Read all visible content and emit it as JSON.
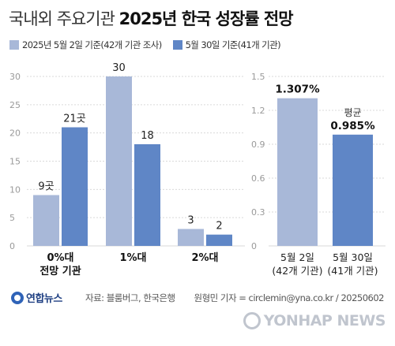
{
  "header": {
    "title_light": "국내외 주요기관",
    "title_bold": "2025년 한국 성장률 전망"
  },
  "legend": [
    {
      "label": "2025년 5월 2일 기준(42개 기관 조사)",
      "color": "#a8b8d8"
    },
    {
      "label": "5월 30일 기준(41개 기관)",
      "color": "#5f86c6"
    }
  ],
  "colors": {
    "series1": "#a8b8d8",
    "series2": "#5f86c6",
    "grid": "#d9d9d9",
    "tick": "#9a9a9a"
  },
  "chart_data": [
    {
      "type": "bar",
      "categories": [
        "0%대\n전망 기관",
        "1%대",
        "2%대"
      ],
      "series": [
        {
          "name": "2025년 5월 2일 기준(42개 기관 조사)",
          "values": [
            9,
            30,
            3
          ],
          "labels": [
            "9곳",
            "30",
            "3"
          ]
        },
        {
          "name": "5월 30일 기준(41개 기관)",
          "values": [
            21,
            18,
            2
          ],
          "labels": [
            "21곳",
            "18",
            "2"
          ]
        }
      ],
      "yticks": [
        0,
        5,
        10,
        15,
        20,
        25,
        30
      ],
      "ylim": [
        0,
        30
      ],
      "grid": true
    },
    {
      "type": "bar",
      "categories": [
        "5월 2일\n(42개 기관)",
        "5월 30일\n(41개 기관)"
      ],
      "values": [
        1.307,
        0.985
      ],
      "labels": [
        "1.307%",
        "0.985%"
      ],
      "annotation": "평균",
      "yticks": [
        0,
        0.3,
        0.6,
        0.9,
        1.2,
        1.5
      ],
      "ytick_labels": [
        "0",
        "0.3",
        "0.6",
        "0.9",
        "1.2",
        "1.5"
      ],
      "ylim": [
        0,
        1.5
      ],
      "grid": true
    }
  ],
  "footer": {
    "logo": "연합뉴스",
    "source": "자료: 블룸버그, 한국은행",
    "credit": "원형민 기자 = circlemin@yna.co.kr / 20250602",
    "watermark": "YONHAP NEWS"
  }
}
